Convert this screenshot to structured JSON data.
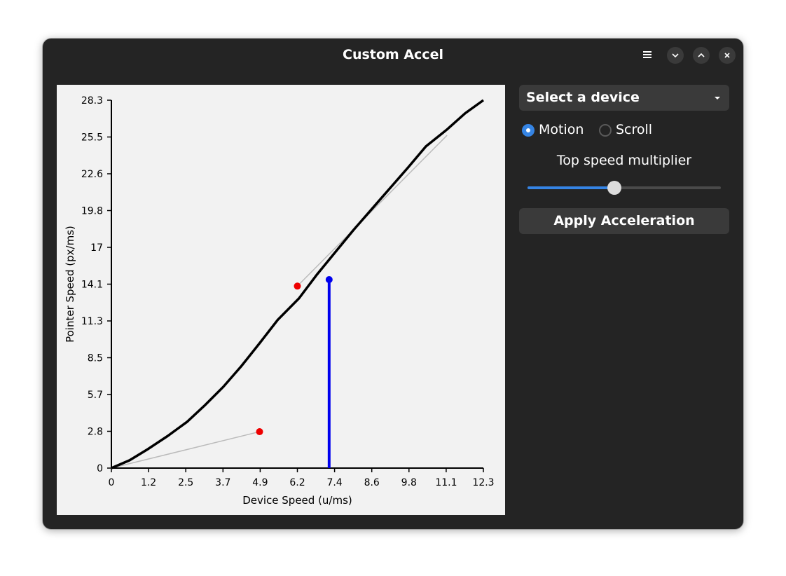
{
  "window": {
    "title": "Custom Accel"
  },
  "titlebar_icons": {
    "menu": "hamburger-icon",
    "minimize": "chevron-down-icon",
    "maximize": "chevron-up-icon",
    "close": "close-icon"
  },
  "device_select": {
    "label": "Select a device",
    "icon": "dropdown-caret-icon"
  },
  "mode": {
    "options": [
      {
        "label": "Motion",
        "selected": true
      },
      {
        "label": "Scroll",
        "selected": false
      }
    ]
  },
  "slider": {
    "label": "Top speed multiplier",
    "value_fraction": 0.45
  },
  "apply_button": {
    "label": "Apply Acceleration"
  },
  "colors": {
    "accent": "#3584e4",
    "curve": "#000000",
    "marker": "#0000ee",
    "control_points": "#ee0000",
    "panel_bg": "#f2f2f2",
    "window_bg": "#242424"
  },
  "chart_data": {
    "type": "line",
    "xlabel": "Device Speed (u/ms)",
    "ylabel": "Pointer Speed (px/ms)",
    "xticks": [
      "0",
      "1.2",
      "2.5",
      "3.7",
      "4.9",
      "6.2",
      "7.4",
      "8.6",
      "9.8",
      "11.1",
      "12.3"
    ],
    "yticks": [
      "0",
      "2.8",
      "5.7",
      "8.5",
      "11.3",
      "14.1",
      "17",
      "19.8",
      "22.6",
      "25.5",
      "28.3"
    ],
    "xlim": [
      0,
      12.3
    ],
    "ylim": [
      0,
      28.3
    ],
    "series": [
      {
        "x": [
          0,
          0.6,
          1.2,
          1.85,
          2.5,
          3.1,
          3.7,
          4.3,
          4.9,
          5.5,
          6.2,
          6.8,
          7.4,
          8.0,
          8.6,
          9.2,
          9.8,
          10.4,
          11.1,
          11.7,
          12.3
        ],
        "values": [
          0,
          0.6,
          1.45,
          2.45,
          3.55,
          4.85,
          6.25,
          7.85,
          9.6,
          11.4,
          13.05,
          14.9,
          16.6,
          18.3,
          19.9,
          21.5,
          23.1,
          24.75,
          26.05,
          27.3,
          28.3
        ]
      }
    ],
    "control_points": [
      {
        "x": 4.9,
        "y": 2.8
      },
      {
        "x": 6.15,
        "y": 14.0
      }
    ],
    "control_lines": [
      {
        "from": [
          0,
          0
        ],
        "to": [
          4.9,
          2.8
        ]
      },
      {
        "from": [
          6.15,
          14.0
        ],
        "to": [
          11.1,
          25.6
        ]
      }
    ],
    "marker": {
      "x": 7.2,
      "y": 14.5
    },
    "grid": false
  }
}
